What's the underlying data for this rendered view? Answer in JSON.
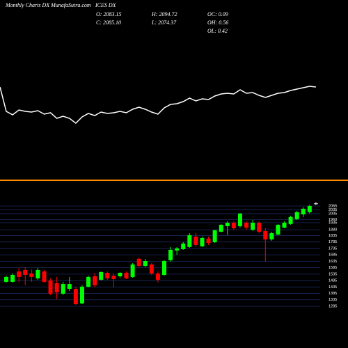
{
  "header": {
    "title": "Monthly Charts DX MunafaSutra.com",
    "symbol": "ICES DX",
    "open": "O: 2083.15",
    "close": "C: 2085.10",
    "high": "H: 2094.72",
    "low": "L: 2074.37",
    "oc": "OC: 0.09",
    "oh": "OH: 0.56",
    "ol": "OL: 0.42"
  },
  "chart_data": [
    {
      "type": "line",
      "color": "#ffffff",
      "ylim": [
        0,
        100
      ],
      "values": [
        75,
        40,
        35,
        42,
        40,
        39,
        41,
        36,
        38,
        30,
        33,
        30,
        23,
        32,
        37,
        34,
        39,
        37,
        38,
        40,
        38,
        43,
        46,
        43,
        39,
        36,
        45,
        50,
        51,
        54,
        59,
        55,
        58,
        57,
        62,
        65,
        66,
        65,
        71,
        66,
        67,
        63,
        60,
        63,
        66,
        67,
        70,
        72,
        74,
        76,
        75
      ]
    },
    {
      "type": "candlestick",
      "up_color": "#00ff00",
      "down_color": "#ff0000",
      "grid_color": "#1c2a63",
      "ylim": [
        1285,
        2065
      ],
      "yticks": [
        2065,
        2035,
        2005,
        1960,
        1935,
        1880,
        1835,
        1785,
        1735,
        1685,
        1635,
        1585,
        1535,
        1485,
        1435,
        1385,
        1335,
        1285
      ],
      "open": [
        1475,
        1475,
        1556,
        1567,
        1540,
        1502,
        1556,
        1486,
        1464,
        1383,
        1420,
        1420,
        1307,
        1437,
        1518,
        1491,
        1545,
        1523,
        1518,
        1545,
        1513,
        1654,
        1599,
        1610,
        1540,
        1529,
        1643,
        1719,
        1729,
        1746,
        1827,
        1751,
        1811,
        1784,
        1865,
        1908,
        1935,
        1908,
        1935,
        1881,
        1935,
        1870,
        1805,
        1843,
        1897,
        1925,
        1963,
        2000,
        2017,
        2083.15
      ],
      "high": [
        1523,
        1540,
        1583,
        1589,
        1572,
        1583,
        1567,
        1502,
        1513,
        1475,
        1513,
        1437,
        1448,
        1523,
        1545,
        1556,
        1556,
        1540,
        1551,
        1556,
        1621,
        1664,
        1654,
        1621,
        1556,
        1643,
        1746,
        1746,
        1784,
        1854,
        1854,
        1827,
        1827,
        1881,
        1925,
        1946,
        1946,
        2011,
        1946,
        1957,
        1946,
        1892,
        1865,
        1925,
        1946,
        1990,
        2028,
        2055,
        2076,
        2094.72
      ],
      "low": [
        1469,
        1469,
        1475,
        1448,
        1475,
        1491,
        1469,
        1372,
        1339,
        1372,
        1404,
        1296,
        1301,
        1431,
        1431,
        1486,
        1491,
        1431,
        1507,
        1496,
        1507,
        1589,
        1589,
        1529,
        1469,
        1523,
        1632,
        1686,
        1724,
        1740,
        1746,
        1746,
        1762,
        1778,
        1859,
        1838,
        1881,
        1897,
        1881,
        1870,
        1854,
        1632,
        1795,
        1838,
        1892,
        1919,
        1957,
        1979,
        2006,
        2074.37
      ],
      "close": [
        1513,
        1529,
        1513,
        1529,
        1513,
        1567,
        1475,
        1383,
        1393,
        1458,
        1458,
        1301,
        1437,
        1513,
        1448,
        1551,
        1502,
        1496,
        1545,
        1502,
        1610,
        1599,
        1637,
        1540,
        1491,
        1637,
        1724,
        1735,
        1773,
        1838,
        1762,
        1816,
        1778,
        1876,
        1919,
        1935,
        1892,
        2006,
        1897,
        1935,
        1865,
        1805,
        1854,
        1919,
        1935,
        1979,
        2017,
        2044,
        2065,
        2085.1
      ]
    }
  ]
}
